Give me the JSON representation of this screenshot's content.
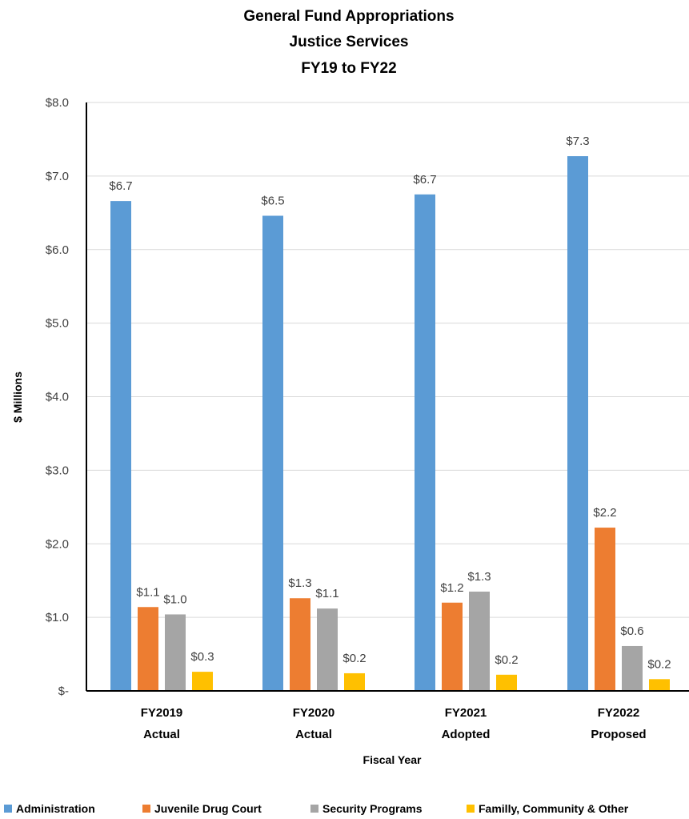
{
  "chart_data": {
    "type": "bar",
    "title_lines": [
      "General Fund Appropriations",
      "Justice Services",
      "FY19 to FY22"
    ],
    "xlabel": "Fiscal Year",
    "ylabel": "$ Millions",
    "ylim": [
      0,
      8
    ],
    "yticks": [
      {
        "value": 0,
        "label": "$-"
      },
      {
        "value": 1,
        "label": "$1.0"
      },
      {
        "value": 2,
        "label": "$2.0"
      },
      {
        "value": 3,
        "label": "$3.0"
      },
      {
        "value": 4,
        "label": "$4.0"
      },
      {
        "value": 5,
        "label": "$5.0"
      },
      {
        "value": 6,
        "label": "$6.0"
      },
      {
        "value": 7,
        "label": "$7.0"
      },
      {
        "value": 8,
        "label": "$8.0"
      }
    ],
    "categories": [
      [
        "FY2019",
        "Actual"
      ],
      [
        "FY2020",
        "Actual"
      ],
      [
        "FY2021",
        "Adopted"
      ],
      [
        "FY2022",
        "Proposed"
      ]
    ],
    "grid": true,
    "legend_position": "bottom",
    "series": [
      {
        "name": "Administration",
        "color": "#5B9BD5",
        "values": [
          6.66,
          6.46,
          6.75,
          7.27
        ],
        "labels": [
          "$6.7",
          "$6.5",
          "$6.7",
          "$7.3"
        ]
      },
      {
        "name": "Juvenile Drug Court",
        "color": "#ED7D31",
        "values": [
          1.14,
          1.26,
          1.2,
          2.22
        ],
        "labels": [
          "$1.1",
          "$1.3",
          "$1.2",
          "$2.2"
        ]
      },
      {
        "name": "Security Programs",
        "color": "#A5A5A5",
        "values": [
          1.04,
          1.12,
          1.35,
          0.61
        ],
        "labels": [
          "$1.0",
          "$1.1",
          "$1.3",
          "$0.6"
        ]
      },
      {
        "name": "Familly, Community & Other",
        "color": "#FFC000",
        "values": [
          0.26,
          0.24,
          0.22,
          0.16
        ],
        "labels": [
          "$0.3",
          "$0.2",
          "$0.2",
          "$0.2"
        ]
      }
    ]
  }
}
